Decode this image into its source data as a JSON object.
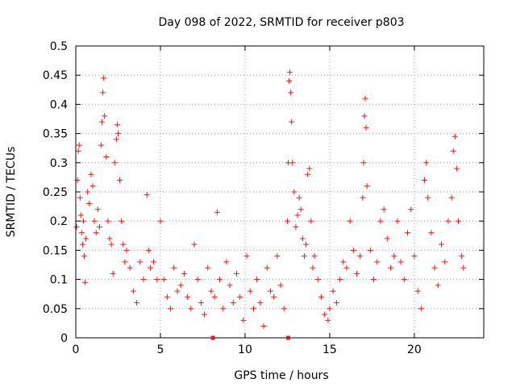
{
  "chart_data": {
    "type": "scatter",
    "title": "Day 098 of 2022, SRMTID for receiver p803",
    "xlabel": "GPS time / hours",
    "ylabel": "SRMTID / TECUs",
    "xlim": [
      0,
      24.1
    ],
    "ylim": [
      0,
      0.5
    ],
    "x_ticks": [
      0,
      5,
      10,
      15,
      20
    ],
    "x_tick_labels": [
      "0",
      "5",
      "10",
      "15",
      "20"
    ],
    "y_ticks": [
      0,
      0.05,
      0.1,
      0.15,
      0.2,
      0.25,
      0.3,
      0.35,
      0.4,
      0.45,
      0.5
    ],
    "y_tick_labels": [
      "0",
      "0.05",
      "0.1",
      "0.15",
      "0.2",
      "0.25",
      "0.3",
      "0.35",
      "0.4",
      "0.45",
      "0.5"
    ],
    "grid": true,
    "legend": "none",
    "series": [
      {
        "name": "SRMTID",
        "marker": "plus",
        "color": "#e41a1c",
        "points": [
          [
            0.05,
            0.19
          ],
          [
            0.1,
            0.27
          ],
          [
            0.15,
            0.32
          ],
          [
            0.2,
            0.33
          ],
          [
            0.25,
            0.24
          ],
          [
            0.3,
            0.21
          ],
          [
            0.35,
            0.18
          ],
          [
            0.4,
            0.16
          ],
          [
            0.45,
            0.2
          ],
          [
            0.5,
            0.14
          ],
          [
            0.55,
            0.095
          ],
          [
            0.6,
            0.17
          ],
          [
            0.7,
            0.25
          ],
          [
            0.8,
            0.23
          ],
          [
            0.9,
            0.28
          ],
          [
            1.0,
            0.26
          ],
          [
            1.1,
            0.2
          ],
          [
            1.2,
            0.18
          ],
          [
            1.3,
            0.22
          ],
          [
            1.4,
            0.19
          ],
          [
            1.5,
            0.33
          ],
          [
            1.55,
            0.37
          ],
          [
            1.6,
            0.42
          ],
          [
            1.65,
            0.445
          ],
          [
            1.7,
            0.38
          ],
          [
            1.8,
            0.31
          ],
          [
            1.9,
            0.2
          ],
          [
            2.0,
            0.17
          ],
          [
            2.1,
            0.16
          ],
          [
            2.2,
            0.11
          ],
          [
            2.3,
            0.3
          ],
          [
            2.4,
            0.34
          ],
          [
            2.45,
            0.365
          ],
          [
            2.5,
            0.35
          ],
          [
            2.6,
            0.27
          ],
          [
            2.7,
            0.2
          ],
          [
            2.8,
            0.16
          ],
          [
            2.9,
            0.13
          ],
          [
            3.0,
            0.15
          ],
          [
            3.2,
            0.12
          ],
          [
            3.4,
            0.08
          ],
          [
            3.6,
            0.06
          ],
          [
            3.8,
            0.13
          ],
          [
            4.0,
            0.1
          ],
          [
            4.2,
            0.245
          ],
          [
            4.3,
            0.15
          ],
          [
            4.4,
            0.12
          ],
          [
            4.6,
            0.13
          ],
          [
            4.8,
            0.1
          ],
          [
            5.0,
            0.2
          ],
          [
            5.2,
            0.1
          ],
          [
            5.4,
            0.07
          ],
          [
            5.6,
            0.05
          ],
          [
            5.8,
            0.12
          ],
          [
            6.0,
            0.08
          ],
          [
            6.2,
            0.09
          ],
          [
            6.4,
            0.11
          ],
          [
            6.6,
            0.07
          ],
          [
            6.8,
            0.05
          ],
          [
            7.0,
            0.16
          ],
          [
            7.2,
            0.1
          ],
          [
            7.4,
            0.06
          ],
          [
            7.6,
            0.04
          ],
          [
            7.8,
            0.12
          ],
          [
            8.0,
            0.08
          ],
          [
            8.2,
            0.07
          ],
          [
            8.35,
            0.215
          ],
          [
            8.5,
            0.1
          ],
          [
            8.7,
            0.05
          ],
          [
            8.9,
            0.13
          ],
          [
            9.1,
            0.09
          ],
          [
            9.3,
            0.06
          ],
          [
            9.5,
            0.11
          ],
          [
            9.7,
            0.07
          ],
          [
            9.9,
            0.03
          ],
          [
            10.1,
            0.14
          ],
          [
            10.3,
            0.08
          ],
          [
            10.5,
            0.05
          ],
          [
            10.7,
            0.1
          ],
          [
            10.9,
            0.06
          ],
          [
            11.1,
            0.02
          ],
          [
            11.3,
            0.12
          ],
          [
            11.5,
            0.08
          ],
          [
            11.7,
            0.07
          ],
          [
            11.9,
            0.14
          ],
          [
            12.1,
            0.09
          ],
          [
            12.3,
            0.05
          ],
          [
            12.5,
            0.2
          ],
          [
            12.55,
            0.3
          ],
          [
            12.6,
            0.44
          ],
          [
            12.65,
            0.455
          ],
          [
            12.7,
            0.42
          ],
          [
            12.75,
            0.37
          ],
          [
            12.8,
            0.3
          ],
          [
            12.9,
            0.25
          ],
          [
            13.0,
            0.19
          ],
          [
            13.1,
            0.21
          ],
          [
            13.2,
            0.24
          ],
          [
            13.3,
            0.22
          ],
          [
            13.4,
            0.17
          ],
          [
            13.5,
            0.14
          ],
          [
            13.6,
            0.16
          ],
          [
            13.7,
            0.28
          ],
          [
            13.8,
            0.29
          ],
          [
            13.9,
            0.2
          ],
          [
            14.0,
            0.12
          ],
          [
            14.1,
            0.14
          ],
          [
            14.3,
            0.1
          ],
          [
            14.5,
            0.07
          ],
          [
            14.7,
            0.04
          ],
          [
            14.9,
            0.03
          ],
          [
            15.0,
            0.05
          ],
          [
            15.2,
            0.08
          ],
          [
            15.4,
            0.06
          ],
          [
            15.6,
            0.1
          ],
          [
            15.8,
            0.13
          ],
          [
            16.0,
            0.12
          ],
          [
            16.2,
            0.2
          ],
          [
            16.4,
            0.15
          ],
          [
            16.6,
            0.11
          ],
          [
            16.8,
            0.14
          ],
          [
            16.95,
            0.24
          ],
          [
            17.0,
            0.3
          ],
          [
            17.05,
            0.38
          ],
          [
            17.1,
            0.41
          ],
          [
            17.15,
            0.36
          ],
          [
            17.2,
            0.26
          ],
          [
            17.4,
            0.15
          ],
          [
            17.6,
            0.1
          ],
          [
            17.8,
            0.13
          ],
          [
            18.0,
            0.2
          ],
          [
            18.2,
            0.22
          ],
          [
            18.4,
            0.17
          ],
          [
            18.6,
            0.12
          ],
          [
            18.8,
            0.14
          ],
          [
            19.0,
            0.2
          ],
          [
            19.2,
            0.13
          ],
          [
            19.4,
            0.1
          ],
          [
            19.6,
            0.18
          ],
          [
            19.8,
            0.22
          ],
          [
            20.0,
            0.14
          ],
          [
            20.2,
            0.08
          ],
          [
            20.4,
            0.05
          ],
          [
            20.6,
            0.27
          ],
          [
            20.7,
            0.3
          ],
          [
            20.8,
            0.24
          ],
          [
            21.0,
            0.18
          ],
          [
            21.2,
            0.12
          ],
          [
            21.4,
            0.09
          ],
          [
            21.6,
            0.16
          ],
          [
            21.8,
            0.13
          ],
          [
            22.0,
            0.2
          ],
          [
            22.2,
            0.24
          ],
          [
            22.3,
            0.32
          ],
          [
            22.4,
            0.345
          ],
          [
            22.5,
            0.29
          ],
          [
            22.6,
            0.2
          ],
          [
            22.8,
            0.14
          ],
          [
            22.9,
            0.12
          ]
        ]
      }
    ],
    "markers_on_axis": [
      8.1,
      12.55
    ]
  }
}
